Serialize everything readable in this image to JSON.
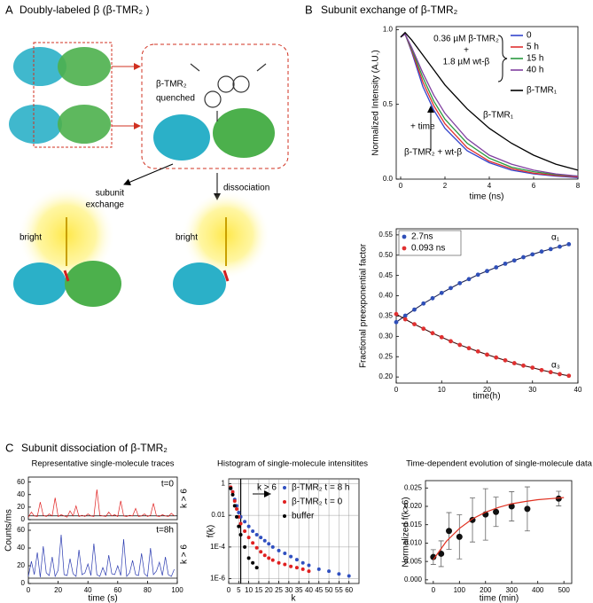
{
  "panels": {
    "a": {
      "label": "A",
      "title": "Doubly-labeled β (β-TMR₂ )",
      "labels": [
        "β-TMR₂",
        "quenched",
        "subunit",
        "exchange",
        "dissociation",
        "bright",
        "bright"
      ]
    },
    "b": {
      "label": "B",
      "title": "Subunit exchange of β-TMR₂"
    },
    "c": {
      "label": "C",
      "title": "Subunit dissociation of β-TMR₂"
    }
  },
  "chart_data": [
    {
      "type": "line",
      "xlabel": "time (ns)",
      "ylabel": "Normalized Intensity (A.U.)",
      "x": [
        0,
        0.2,
        0.5,
        1,
        1.5,
        2,
        3,
        4,
        5,
        6,
        7,
        8
      ],
      "series": [
        {
          "name": "0",
          "color": "#3344cc",
          "values": [
            0.95,
            0.97,
            0.85,
            0.62,
            0.46,
            0.34,
            0.19,
            0.11,
            0.06,
            0.035,
            0.02,
            0.01
          ]
        },
        {
          "name": "5 h",
          "color": "#e03030",
          "values": [
            0.95,
            0.97,
            0.86,
            0.65,
            0.49,
            0.37,
            0.21,
            0.12,
            0.07,
            0.04,
            0.025,
            0.015
          ]
        },
        {
          "name": "15 h",
          "color": "#2a9a40",
          "values": [
            0.95,
            0.97,
            0.87,
            0.68,
            0.52,
            0.4,
            0.24,
            0.14,
            0.08,
            0.05,
            0.03,
            0.02
          ]
        },
        {
          "name": "40 h",
          "color": "#8040a0",
          "values": [
            0.95,
            0.97,
            0.88,
            0.71,
            0.56,
            0.44,
            0.27,
            0.16,
            0.1,
            0.06,
            0.035,
            0.02
          ]
        },
        {
          "name": "β-TMR₁",
          "color": "#000000",
          "values": [
            0.95,
            0.98,
            0.93,
            0.83,
            0.73,
            0.63,
            0.47,
            0.34,
            0.24,
            0.16,
            0.1,
            0.06
          ]
        }
      ],
      "xlim": [
        -0.2,
        8
      ],
      "ylim": [
        0,
        1.02
      ],
      "xticks": [
        0,
        2,
        4,
        6,
        8
      ],
      "yticks": [
        {
          "value": 0,
          "label": "0.0"
        },
        0.5,
        {
          "value": 1,
          "label": "1.0"
        }
      ],
      "legend": "upper right",
      "annotations": [
        "0.36 µM β-TMR₂",
        "+",
        "1.8 µM wt-β",
        "+ time",
        "β-TMR₁",
        "β-TMR₂ + wt-β"
      ]
    },
    {
      "type": "scatter",
      "xlabel": "time(h)",
      "ylabel": "Fractional preexponential factor",
      "x": [
        0,
        2,
        4,
        6,
        8,
        10,
        12,
        14,
        16,
        18,
        20,
        22,
        24,
        26,
        28,
        30,
        32,
        34,
        36,
        38
      ],
      "series": [
        {
          "name": "2.7ns",
          "color": "#2f4fb8",
          "line_color": "#1a2050",
          "style": "points+line",
          "values": [
            0.335,
            0.351,
            0.366,
            0.381,
            0.394,
            0.407,
            0.419,
            0.431,
            0.441,
            0.452,
            0.461,
            0.47,
            0.479,
            0.487,
            0.495,
            0.502,
            0.509,
            0.515,
            0.521,
            0.527
          ]
        },
        {
          "name": "0.093 ns",
          "color": "#e03030",
          "line_color": "#401010",
          "style": "points+line",
          "values": [
            0.355,
            0.342,
            0.33,
            0.319,
            0.308,
            0.298,
            0.288,
            0.279,
            0.271,
            0.263,
            0.255,
            0.248,
            0.241,
            0.234,
            0.228,
            0.223,
            0.217,
            0.212,
            0.207,
            0.203
          ]
        }
      ],
      "xlim": [
        0,
        40
      ],
      "ylim": [
        0.185,
        0.565
      ],
      "xticks": [
        0,
        10,
        20,
        30,
        40
      ],
      "yticks": [
        {
          "value": 0.2,
          "label": "0.20"
        },
        0.25,
        {
          "value": 0.3,
          "label": "0.30"
        },
        0.35,
        {
          "value": 0.4,
          "label": "0.40"
        },
        0.45,
        {
          "value": 0.5,
          "label": "0.50"
        },
        0.55
      ],
      "legend": "upper left",
      "annotations": [
        "α₁",
        "α₃"
      ]
    },
    {
      "type": "line",
      "title": "Representative single-molecule traces",
      "ylabel": "Counts/ms",
      "x": [
        0,
        2,
        4,
        6,
        8,
        10,
        12,
        14,
        16,
        18,
        20,
        22,
        24,
        26,
        28,
        30,
        32,
        34,
        36,
        38,
        40,
        42,
        44,
        46,
        48,
        50,
        52,
        54,
        56,
        58,
        60,
        62,
        64,
        66,
        68,
        70,
        72,
        74,
        76,
        78,
        80,
        82,
        84,
        86,
        88,
        90,
        92,
        94,
        96,
        98
      ],
      "series": [
        {
          "color": "#e02020",
          "values": [
            4,
            12,
            6,
            5,
            28,
            7,
            5,
            9,
            6,
            35,
            5,
            8,
            6,
            4,
            14,
            6,
            22,
            5,
            7,
            5,
            9,
            6,
            5,
            48,
            7,
            6,
            5,
            12,
            6,
            8,
            5,
            30,
            6,
            5,
            7,
            6,
            18,
            5,
            6,
            9,
            5,
            7,
            26,
            6,
            5,
            8,
            6,
            5,
            10,
            6
          ]
        }
      ],
      "xlim": [
        0,
        100
      ],
      "ylim": [
        0,
        68
      ],
      "yticks": [
        0,
        20,
        40,
        60
      ],
      "y_threshold": 6,
      "annotations": [
        "t=0",
        "k > 6"
      ]
    },
    {
      "type": "line",
      "xlabel": "time (s)",
      "x": [
        0,
        2,
        4,
        6,
        8,
        10,
        12,
        14,
        16,
        18,
        20,
        22,
        24,
        26,
        28,
        30,
        32,
        34,
        36,
        38,
        40,
        42,
        44,
        46,
        48,
        50,
        52,
        54,
        56,
        58,
        60,
        62,
        64,
        66,
        68,
        70,
        72,
        74,
        76,
        78,
        80,
        82,
        84,
        86,
        88,
        90,
        92,
        94,
        96,
        98
      ],
      "series": [
        {
          "color": "#2a3ab0",
          "values": [
            8,
            25,
            10,
            35,
            7,
            42,
            12,
            9,
            30,
            8,
            15,
            55,
            10,
            9,
            28,
            11,
            8,
            38,
            10,
            12,
            22,
            9,
            45,
            10,
            8,
            18,
            9,
            32,
            11,
            10,
            20,
            9,
            50,
            8,
            12,
            26,
            10,
            9,
            34,
            11,
            8,
            40,
            10,
            14,
            24,
            9,
            30,
            10,
            8,
            16
          ]
        }
      ],
      "xlim": [
        0,
        100
      ],
      "ylim": [
        0,
        68
      ],
      "xticks": [
        0,
        20,
        40,
        60,
        80,
        100
      ],
      "yticks": [
        0,
        20,
        40,
        60
      ],
      "y_threshold": 6,
      "annotations": [
        "t=8h",
        "k > 6"
      ]
    },
    {
      "type": "scatter",
      "title": "Histogram of single-molecule intensitites",
      "xlabel": "k",
      "ylabel": "f(k)",
      "log_y": true,
      "grid": true,
      "series": [
        {
          "name": "β-TMR₂ t = 8 h",
          "color": "#3050c0",
          "style": "points",
          "x": [
            1,
            2,
            3,
            4,
            5,
            6,
            8,
            10,
            12,
            14,
            16,
            18,
            20,
            22,
            25,
            28,
            31,
            34,
            37,
            40,
            45,
            50,
            55,
            60
          ],
          "values": [
            0.5,
            0.3,
            0.1,
            0.04,
            0.015,
            0.008,
            0.004,
            0.002,
            0.001,
            0.0006,
            0.0004,
            0.00025,
            0.00016,
            0.0001,
            6e-05,
            4e-05,
            2.5e-05,
            1.6e-05,
            1e-05,
            7e-06,
            4e-06,
            3e-06,
            2e-06,
            1.5e-06
          ]
        },
        {
          "name": "β-TMR₂ t = 0",
          "color": "#e02020",
          "style": "points",
          "x": [
            1,
            2,
            3,
            4,
            5,
            6,
            8,
            10,
            12,
            14,
            16,
            18,
            20,
            22,
            25,
            28,
            31,
            34,
            37,
            40
          ],
          "values": [
            0.6,
            0.3,
            0.08,
            0.025,
            0.008,
            0.003,
            0.001,
            0.0004,
            0.00018,
            9e-05,
            5e-05,
            3e-05,
            2e-05,
            1.5e-05,
            1e-05,
            8e-06,
            6e-06,
            5e-06,
            4e-06,
            3e-06
          ]
        },
        {
          "name": "buffer",
          "color": "#000000",
          "style": "points",
          "x": [
            1,
            2,
            3,
            4,
            5,
            6,
            8,
            10,
            12,
            14
          ],
          "values": [
            0.5,
            0.2,
            0.04,
            0.008,
            0.002,
            0.0006,
            0.0001,
            2e-05,
            1e-05,
            5e-06
          ]
        }
      ],
      "xlim": [
        0,
        65
      ],
      "ylim": [
        5e-07,
        2
      ],
      "xticks": [
        0,
        5,
        10,
        15,
        20,
        25,
        30,
        35,
        40,
        45,
        50,
        55,
        60
      ],
      "yticks": [
        {
          "value": 1e-06,
          "label": "1E-6"
        },
        {
          "value": 0.0001,
          "label": "1E-4"
        },
        0.01,
        1
      ],
      "x_threshold": 6,
      "legend": "upper right",
      "annotations": [
        "k > 6"
      ]
    },
    {
      "type": "scatter",
      "title": "Time-dependent evolution of single-molecule data",
      "xlabel": "time (min)",
      "ylabel": "Normalized f(k>6)",
      "series": [
        {
          "color": "#111111",
          "style": "points",
          "x": [
            0,
            30,
            60,
            100,
            150,
            200,
            240,
            300,
            360,
            480
          ],
          "values": [
            0.0062,
            0.0071,
            0.0133,
            0.0117,
            0.0163,
            0.0178,
            0.0185,
            0.02,
            0.0193,
            0.0221
          ],
          "errors": [
            0.002,
            0.0035,
            0.005,
            0.006,
            0.006,
            0.007,
            0.004,
            0.004,
            0.006,
            0.002
          ]
        },
        {
          "color": "#e03020",
          "style": "line",
          "x": [
            0,
            50,
            100,
            150,
            200,
            250,
            300,
            350,
            400,
            450,
            500
          ],
          "values": [
            0.0055,
            0.0105,
            0.014,
            0.0166,
            0.0184,
            0.0197,
            0.0207,
            0.0213,
            0.0218,
            0.0221,
            0.0224
          ]
        }
      ],
      "xlim": [
        -30,
        530
      ],
      "ylim": [
        -0.001,
        0.027
      ],
      "xticks": [
        0,
        100,
        200,
        300,
        400,
        500
      ],
      "yticks": [
        {
          "value": 0,
          "label": "0.000"
        },
        0.005,
        {
          "value": 0.01,
          "label": "0.010"
        },
        0.015,
        {
          "value": 0.02,
          "label": "0.020"
        },
        0.025
      ]
    }
  ]
}
